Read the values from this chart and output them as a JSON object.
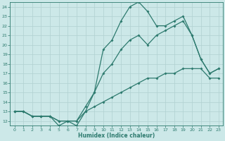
{
  "xlabel": "Humidex (Indice chaleur)",
  "ylabel": "",
  "bg_color": "#cce8e8",
  "grid_color": "#b0d0d0",
  "line_color": "#2d7a6e",
  "xlim": [
    -0.5,
    23.5
  ],
  "ylim": [
    11.5,
    24.5
  ],
  "xticks": [
    0,
    1,
    2,
    3,
    4,
    5,
    6,
    7,
    8,
    9,
    10,
    11,
    12,
    13,
    14,
    15,
    16,
    17,
    18,
    19,
    20,
    21,
    22,
    23
  ],
  "yticks": [
    12,
    13,
    14,
    15,
    16,
    17,
    18,
    19,
    20,
    21,
    22,
    23,
    24
  ],
  "line1_x": [
    0,
    1,
    2,
    3,
    4,
    5,
    6,
    7,
    8,
    9,
    10,
    11,
    12,
    13,
    14,
    15,
    16,
    17,
    18,
    19,
    20,
    21,
    22,
    23
  ],
  "line1_y": [
    13,
    13,
    12.5,
    12.5,
    12.5,
    12,
    12,
    12,
    13,
    13.5,
    14,
    14.5,
    15,
    15.5,
    16,
    16.5,
    16.5,
    17,
    17,
    17.5,
    17.5,
    17.5,
    16.5,
    16.5
  ],
  "line2_x": [
    0,
    1,
    2,
    3,
    4,
    5,
    6,
    7,
    8,
    9,
    10,
    11,
    12,
    13,
    14,
    15,
    16,
    17,
    18,
    19,
    20,
    21,
    22,
    23
  ],
  "line2_y": [
    13,
    13,
    12.5,
    12.5,
    12.5,
    12,
    12,
    12,
    13.5,
    15,
    17,
    18,
    19.5,
    20.5,
    21,
    20,
    21,
    21.5,
    22,
    22.5,
    21,
    18.5,
    17,
    17.5
  ],
  "line3_x": [
    0,
    1,
    2,
    3,
    4,
    5,
    6,
    7,
    8,
    9,
    10,
    11,
    12,
    13,
    14,
    15,
    16,
    17,
    18,
    19,
    20,
    21,
    22,
    23
  ],
  "line3_y": [
    13,
    13,
    12.5,
    12.5,
    12.5,
    11.5,
    12,
    11.5,
    13,
    15,
    19.5,
    20.5,
    22.5,
    24,
    24.5,
    23.5,
    22,
    22,
    22.5,
    23,
    21,
    18.5,
    17,
    17.5
  ],
  "marker_size": 2,
  "line_width": 0.9
}
